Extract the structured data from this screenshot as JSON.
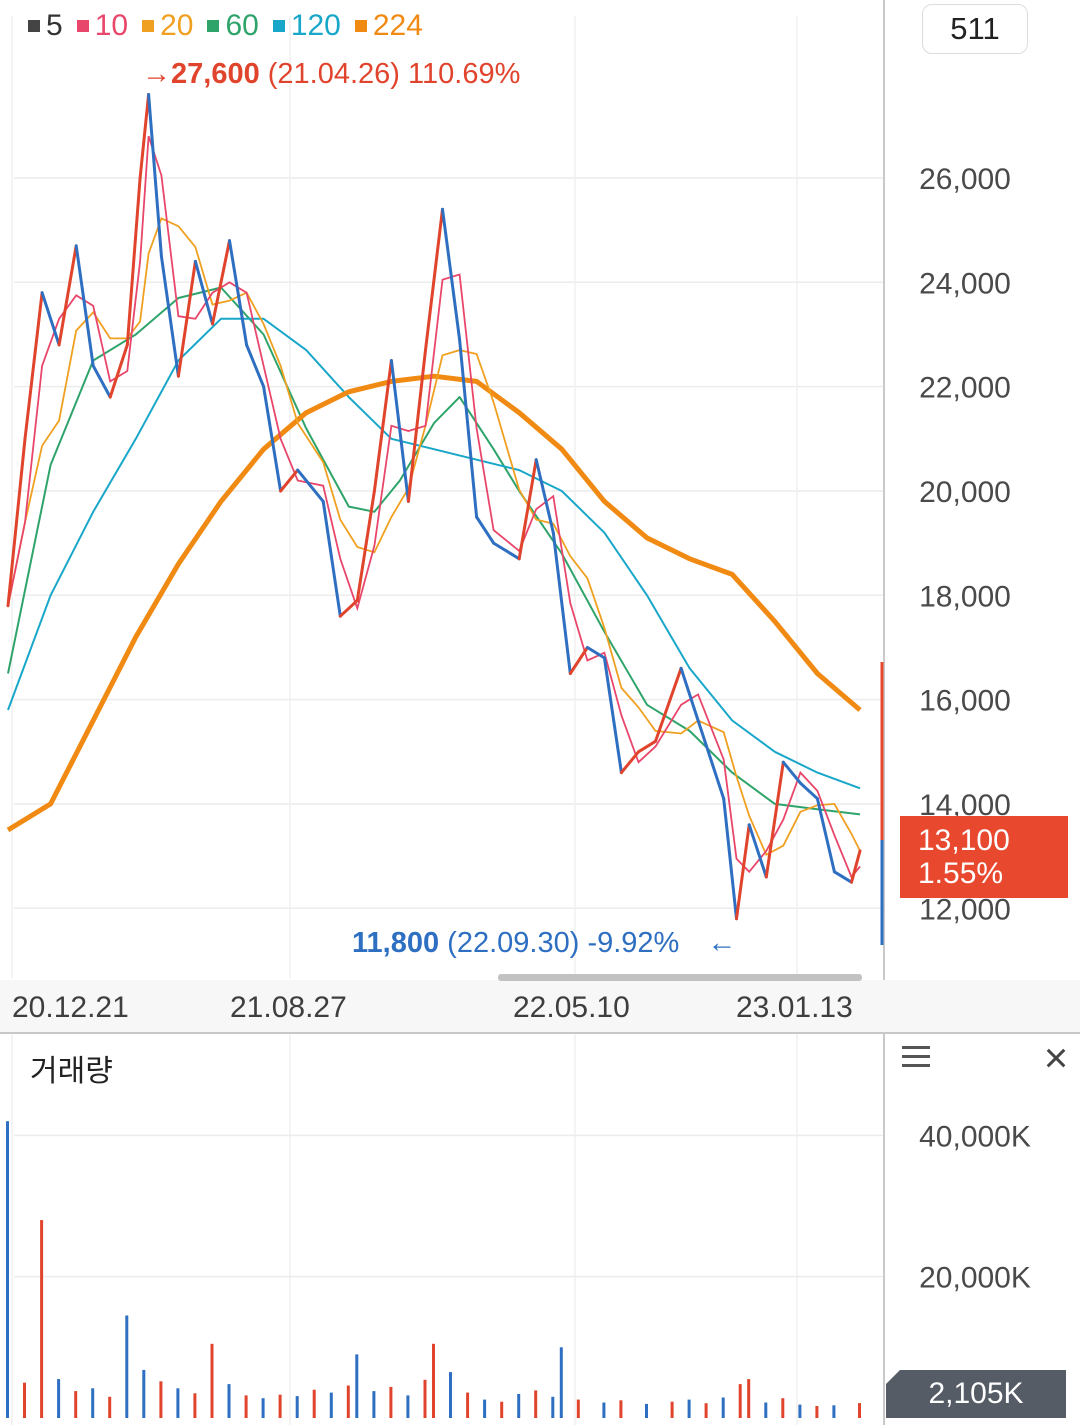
{
  "chart_data": {
    "type": "line",
    "legend": [
      {
        "name": "5",
        "color": "#444444"
      },
      {
        "name": "10",
        "color": "#e8466a"
      },
      {
        "name": "20",
        "color": "#f0a020"
      },
      {
        "name": "60",
        "color": "#2fa46a"
      },
      {
        "name": "120",
        "color": "#19a7c9"
      },
      {
        "name": "224",
        "color": "#f08a12"
      }
    ],
    "count_label": "511",
    "price_axis": {
      "ticks": [
        "26,000",
        "24,000",
        "22,000",
        "20,000",
        "18,000",
        "16,000",
        "14,000",
        "12,000"
      ],
      "values": [
        26000,
        24000,
        22000,
        20000,
        18000,
        16000,
        14000,
        12000
      ],
      "range": [
        11200,
        28300
      ]
    },
    "x_labels": [
      "20.12.21",
      "21.08.27",
      "22.05.10",
      "23.01.13"
    ],
    "high_annotation": {
      "arrow": "→",
      "price": "27,600",
      "date": "(21.04.26)",
      "pct": "110.69%"
    },
    "low_annotation": {
      "price": "11,800",
      "date": "(22.09.30)",
      "pct": "-9.92%",
      "arrow": "←"
    },
    "current": {
      "price": "13,100",
      "pct": "1.55%"
    },
    "price_series": [
      {
        "t": 0,
        "v": 17800
      },
      {
        "t": 0.02,
        "v": 21000
      },
      {
        "t": 0.04,
        "v": 23800
      },
      {
        "t": 0.06,
        "v": 22800
      },
      {
        "t": 0.08,
        "v": 24700
      },
      {
        "t": 0.1,
        "v": 22400
      },
      {
        "t": 0.12,
        "v": 21800
      },
      {
        "t": 0.14,
        "v": 22800
      },
      {
        "t": 0.155,
        "v": 26000
      },
      {
        "t": 0.165,
        "v": 27600
      },
      {
        "t": 0.18,
        "v": 24500
      },
      {
        "t": 0.2,
        "v": 22200
      },
      {
        "t": 0.22,
        "v": 24400
      },
      {
        "t": 0.24,
        "v": 23200
      },
      {
        "t": 0.26,
        "v": 24800
      },
      {
        "t": 0.28,
        "v": 22800
      },
      {
        "t": 0.3,
        "v": 22000
      },
      {
        "t": 0.32,
        "v": 20000
      },
      {
        "t": 0.34,
        "v": 20400
      },
      {
        "t": 0.37,
        "v": 19800
      },
      {
        "t": 0.39,
        "v": 17600
      },
      {
        "t": 0.41,
        "v": 17900
      },
      {
        "t": 0.43,
        "v": 20000
      },
      {
        "t": 0.45,
        "v": 22500
      },
      {
        "t": 0.47,
        "v": 19800
      },
      {
        "t": 0.49,
        "v": 22700
      },
      {
        "t": 0.51,
        "v": 25400
      },
      {
        "t": 0.53,
        "v": 22900
      },
      {
        "t": 0.55,
        "v": 19500
      },
      {
        "t": 0.57,
        "v": 19000
      },
      {
        "t": 0.6,
        "v": 18700
      },
      {
        "t": 0.62,
        "v": 20600
      },
      {
        "t": 0.64,
        "v": 19200
      },
      {
        "t": 0.66,
        "v": 16500
      },
      {
        "t": 0.68,
        "v": 17000
      },
      {
        "t": 0.7,
        "v": 16800
      },
      {
        "t": 0.72,
        "v": 14600
      },
      {
        "t": 0.74,
        "v": 15000
      },
      {
        "t": 0.76,
        "v": 15200
      },
      {
        "t": 0.79,
        "v": 16600
      },
      {
        "t": 0.81,
        "v": 15600
      },
      {
        "t": 0.84,
        "v": 14100
      },
      {
        "t": 0.855,
        "v": 11800
      },
      {
        "t": 0.87,
        "v": 13600
      },
      {
        "t": 0.89,
        "v": 12600
      },
      {
        "t": 0.91,
        "v": 14800
      },
      {
        "t": 0.93,
        "v": 14400
      },
      {
        "t": 0.95,
        "v": 14100
      },
      {
        "t": 0.97,
        "v": 12700
      },
      {
        "t": 0.99,
        "v": 12500
      },
      {
        "t": 1.0,
        "v": 13100
      }
    ],
    "ma_series": [
      {
        "name": "60",
        "points": [
          {
            "t": 0,
            "v": 16500
          },
          {
            "t": 0.05,
            "v": 20500
          },
          {
            "t": 0.1,
            "v": 22500
          },
          {
            "t": 0.15,
            "v": 23000
          },
          {
            "t": 0.2,
            "v": 23700
          },
          {
            "t": 0.25,
            "v": 23900
          },
          {
            "t": 0.3,
            "v": 23000
          },
          {
            "t": 0.35,
            "v": 21200
          },
          {
            "t": 0.4,
            "v": 19700
          },
          {
            "t": 0.43,
            "v": 19600
          },
          {
            "t": 0.46,
            "v": 20200
          },
          {
            "t": 0.5,
            "v": 21300
          },
          {
            "t": 0.53,
            "v": 21800
          },
          {
            "t": 0.57,
            "v": 20800
          },
          {
            "t": 0.6,
            "v": 20000
          },
          {
            "t": 0.65,
            "v": 18800
          },
          {
            "t": 0.7,
            "v": 17300
          },
          {
            "t": 0.75,
            "v": 15900
          },
          {
            "t": 0.8,
            "v": 15400
          },
          {
            "t": 0.85,
            "v": 14600
          },
          {
            "t": 0.9,
            "v": 14000
          },
          {
            "t": 0.95,
            "v": 13900
          },
          {
            "t": 1.0,
            "v": 13800
          }
        ]
      },
      {
        "name": "120",
        "points": [
          {
            "t": 0,
            "v": 15800
          },
          {
            "t": 0.05,
            "v": 18000
          },
          {
            "t": 0.1,
            "v": 19600
          },
          {
            "t": 0.15,
            "v": 21000
          },
          {
            "t": 0.2,
            "v": 22500
          },
          {
            "t": 0.25,
            "v": 23300
          },
          {
            "t": 0.3,
            "v": 23300
          },
          {
            "t": 0.35,
            "v": 22700
          },
          {
            "t": 0.4,
            "v": 21800
          },
          {
            "t": 0.45,
            "v": 21000
          },
          {
            "t": 0.5,
            "v": 20800
          },
          {
            "t": 0.55,
            "v": 20600
          },
          {
            "t": 0.6,
            "v": 20400
          },
          {
            "t": 0.65,
            "v": 20000
          },
          {
            "t": 0.7,
            "v": 19200
          },
          {
            "t": 0.75,
            "v": 18000
          },
          {
            "t": 0.8,
            "v": 16600
          },
          {
            "t": 0.85,
            "v": 15600
          },
          {
            "t": 0.9,
            "v": 15000
          },
          {
            "t": 0.95,
            "v": 14600
          },
          {
            "t": 1.0,
            "v": 14300
          }
        ]
      },
      {
        "name": "224",
        "points": [
          {
            "t": 0,
            "v": 13500
          },
          {
            "t": 0.05,
            "v": 14000
          },
          {
            "t": 0.1,
            "v": 15600
          },
          {
            "t": 0.15,
            "v": 17200
          },
          {
            "t": 0.2,
            "v": 18600
          },
          {
            "t": 0.25,
            "v": 19800
          },
          {
            "t": 0.3,
            "v": 20800
          },
          {
            "t": 0.35,
            "v": 21500
          },
          {
            "t": 0.4,
            "v": 21900
          },
          {
            "t": 0.45,
            "v": 22100
          },
          {
            "t": 0.5,
            "v": 22200
          },
          {
            "t": 0.55,
            "v": 22100
          },
          {
            "t": 0.6,
            "v": 21500
          },
          {
            "t": 0.65,
            "v": 20800
          },
          {
            "t": 0.7,
            "v": 19800
          },
          {
            "t": 0.75,
            "v": 19100
          },
          {
            "t": 0.8,
            "v": 18700
          },
          {
            "t": 0.85,
            "v": 18400
          },
          {
            "t": 0.9,
            "v": 17500
          },
          {
            "t": 0.95,
            "v": 16500
          },
          {
            "t": 1.0,
            "v": 15800
          }
        ]
      }
    ],
    "volume": {
      "title": "거래량",
      "ticks": [
        "40,000K",
        "20,000K"
      ],
      "tick_values": [
        40000,
        20000
      ],
      "max": 45000,
      "current": "2,105K",
      "spikes": [
        {
          "t": 0.0,
          "v": 42000
        },
        {
          "t": 0.04,
          "v": 28000
        },
        {
          "t": 0.14,
          "v": 14500
        },
        {
          "t": 0.24,
          "v": 10500
        },
        {
          "t": 0.41,
          "v": 9000
        },
        {
          "t": 0.5,
          "v": 10500
        },
        {
          "t": 0.65,
          "v": 10000
        },
        {
          "t": 0.87,
          "v": 5500
        }
      ],
      "bars": [
        {
          "t": 0.02,
          "v": 5000
        },
        {
          "t": 0.06,
          "v": 5500
        },
        {
          "t": 0.08,
          "v": 3800
        },
        {
          "t": 0.1,
          "v": 4200
        },
        {
          "t": 0.12,
          "v": 3000
        },
        {
          "t": 0.16,
          "v": 6800
        },
        {
          "t": 0.18,
          "v": 5200
        },
        {
          "t": 0.2,
          "v": 4200
        },
        {
          "t": 0.22,
          "v": 3500
        },
        {
          "t": 0.26,
          "v": 4800
        },
        {
          "t": 0.28,
          "v": 3200
        },
        {
          "t": 0.3,
          "v": 2800
        },
        {
          "t": 0.32,
          "v": 3300
        },
        {
          "t": 0.34,
          "v": 3100
        },
        {
          "t": 0.36,
          "v": 4000
        },
        {
          "t": 0.38,
          "v": 3600
        },
        {
          "t": 0.4,
          "v": 4600
        },
        {
          "t": 0.43,
          "v": 3800
        },
        {
          "t": 0.45,
          "v": 4400
        },
        {
          "t": 0.47,
          "v": 3200
        },
        {
          "t": 0.49,
          "v": 5400
        },
        {
          "t": 0.52,
          "v": 6500
        },
        {
          "t": 0.54,
          "v": 3600
        },
        {
          "t": 0.56,
          "v": 2600
        },
        {
          "t": 0.58,
          "v": 2300
        },
        {
          "t": 0.6,
          "v": 3400
        },
        {
          "t": 0.62,
          "v": 3900
        },
        {
          "t": 0.64,
          "v": 3000
        },
        {
          "t": 0.67,
          "v": 2600
        },
        {
          "t": 0.7,
          "v": 2200
        },
        {
          "t": 0.72,
          "v": 2500
        },
        {
          "t": 0.75,
          "v": 2000
        },
        {
          "t": 0.78,
          "v": 2300
        },
        {
          "t": 0.8,
          "v": 2600
        },
        {
          "t": 0.82,
          "v": 2100
        },
        {
          "t": 0.84,
          "v": 2900
        },
        {
          "t": 0.86,
          "v": 4800
        },
        {
          "t": 0.89,
          "v": 2200
        },
        {
          "t": 0.91,
          "v": 2800
        },
        {
          "t": 0.93,
          "v": 1900
        },
        {
          "t": 0.95,
          "v": 1700
        },
        {
          "t": 0.97,
          "v": 1800
        },
        {
          "t": 1.0,
          "v": 2105
        }
      ]
    }
  }
}
